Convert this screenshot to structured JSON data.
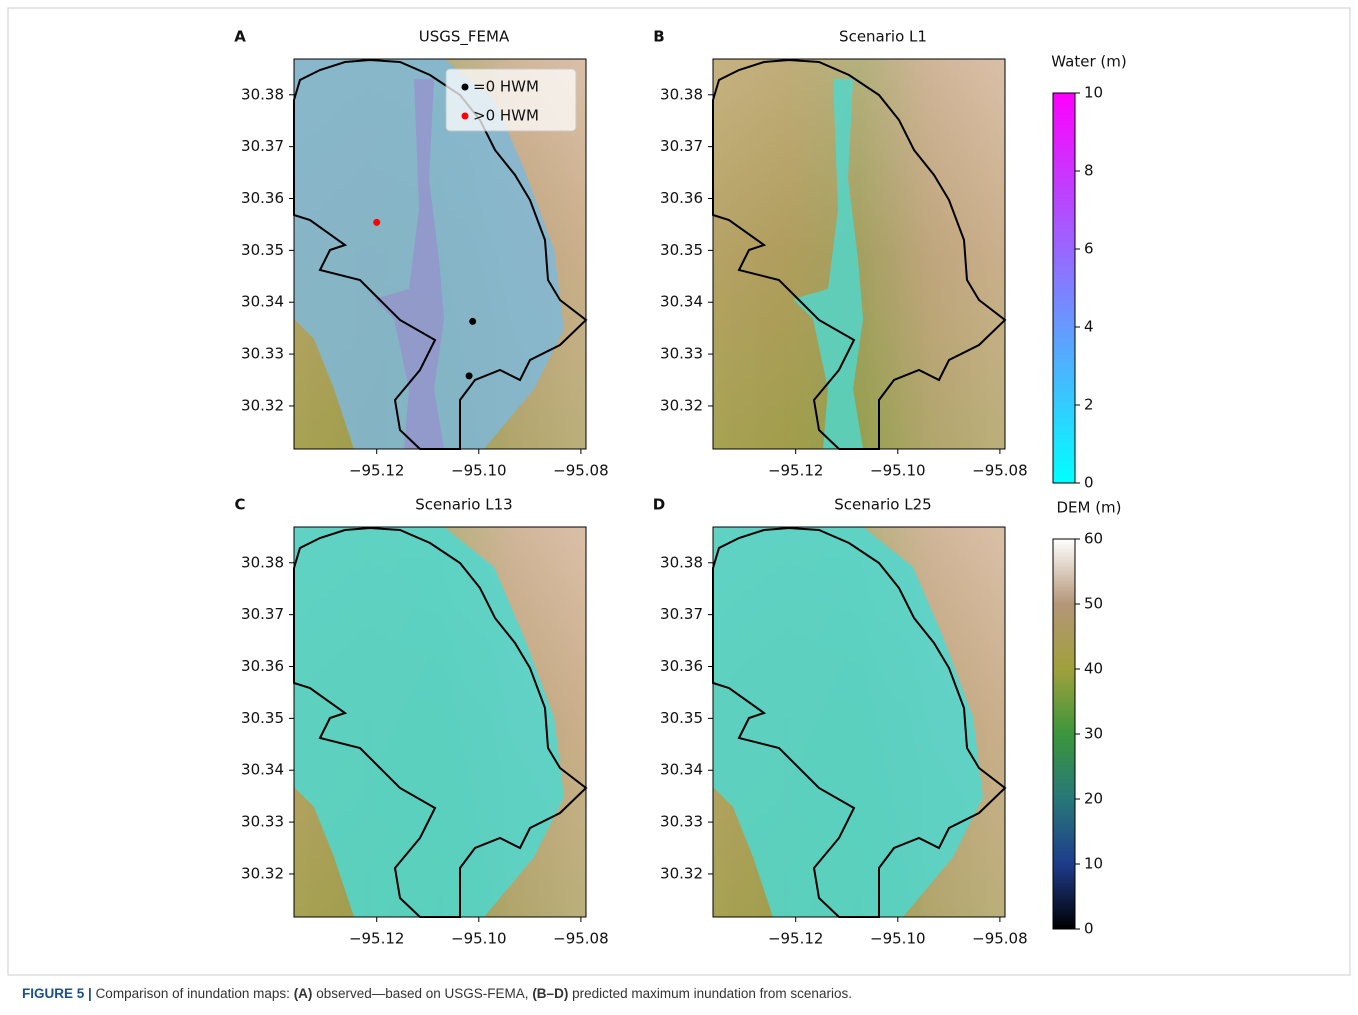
{
  "chart_data": [
    {
      "type": "map",
      "panel_label": "A",
      "title": "USGS_FEMA",
      "xlim": [
        -95.1362,
        -95.079
      ],
      "ylim": [
        30.3117,
        30.3869
      ],
      "xticks": [
        {
          "value": -95.12,
          "label": "−95.12"
        },
        {
          "value": -95.1,
          "label": "−95.10"
        },
        {
          "value": -95.08,
          "label": "−95.08"
        }
      ],
      "yticks": [
        30.32,
        30.33,
        30.34,
        30.35,
        30.36,
        30.37,
        30.38
      ],
      "legend": "upper right",
      "series": [
        {
          "name": "=0 HWM",
          "color": "#000000",
          "x": [
            -95.1012,
            -95.1019
          ],
          "y": [
            30.3363,
            30.3258
          ]
        },
        {
          "name": ">0 HWM",
          "color": "#ff0000",
          "x": [
            -95.12
          ],
          "y": [
            30.3554
          ]
        }
      ]
    },
    {
      "type": "map",
      "panel_label": "B",
      "title": "Scenario L1",
      "xlim": [
        -95.1362,
        -95.079
      ],
      "ylim": [
        30.3117,
        30.3869
      ],
      "xticks": [
        {
          "value": -95.12,
          "label": "−95.12"
        },
        {
          "value": -95.1,
          "label": "−95.10"
        },
        {
          "value": -95.08,
          "label": "−95.08"
        }
      ],
      "yticks": [
        30.32,
        30.33,
        30.34,
        30.35,
        30.36,
        30.37,
        30.38
      ]
    },
    {
      "type": "map",
      "panel_label": "C",
      "title": "Scenario L13",
      "xlim": [
        -95.1362,
        -95.079
      ],
      "ylim": [
        30.3117,
        30.3869
      ],
      "xticks": [
        {
          "value": -95.12,
          "label": "−95.12"
        },
        {
          "value": -95.1,
          "label": "−95.10"
        },
        {
          "value": -95.08,
          "label": "−95.08"
        }
      ],
      "yticks": [
        30.32,
        30.33,
        30.34,
        30.35,
        30.36,
        30.37,
        30.38
      ]
    },
    {
      "type": "map",
      "panel_label": "D",
      "title": "Scenario L25",
      "xlim": [
        -95.1362,
        -95.079
      ],
      "ylim": [
        30.3117,
        30.3869
      ],
      "xticks": [
        {
          "value": -95.12,
          "label": "−95.12"
        },
        {
          "value": -95.1,
          "label": "−95.10"
        },
        {
          "value": -95.08,
          "label": "−95.08"
        }
      ],
      "yticks": [
        30.32,
        30.33,
        30.34,
        30.35,
        30.36,
        30.37,
        30.38
      ]
    },
    {
      "type": "colorbar",
      "title": "Water (m)",
      "ylim": [
        0,
        10
      ],
      "yticks": [
        0,
        2,
        4,
        6,
        8,
        10
      ],
      "colors": [
        "#00ffff",
        "#ff00ff"
      ]
    },
    {
      "type": "colorbar",
      "title": "DEM (m)",
      "ylim": [
        0,
        60
      ],
      "yticks": [
        0,
        10,
        20,
        30,
        40,
        50,
        60
      ],
      "colors": [
        "#000000",
        "#1e3c8c",
        "#287878",
        "#3c963c",
        "#a0a03c",
        "#b49678",
        "#ffffff"
      ]
    }
  ],
  "caption": {
    "label": "FIGURE 5 |",
    "text1": "Comparison of inundation maps:",
    "bold1": "(A)",
    "text2": "observed—based on USGS-FEMA,",
    "bold2": "(B–D)",
    "text3": "predicted maximum inundation from scenarios."
  }
}
